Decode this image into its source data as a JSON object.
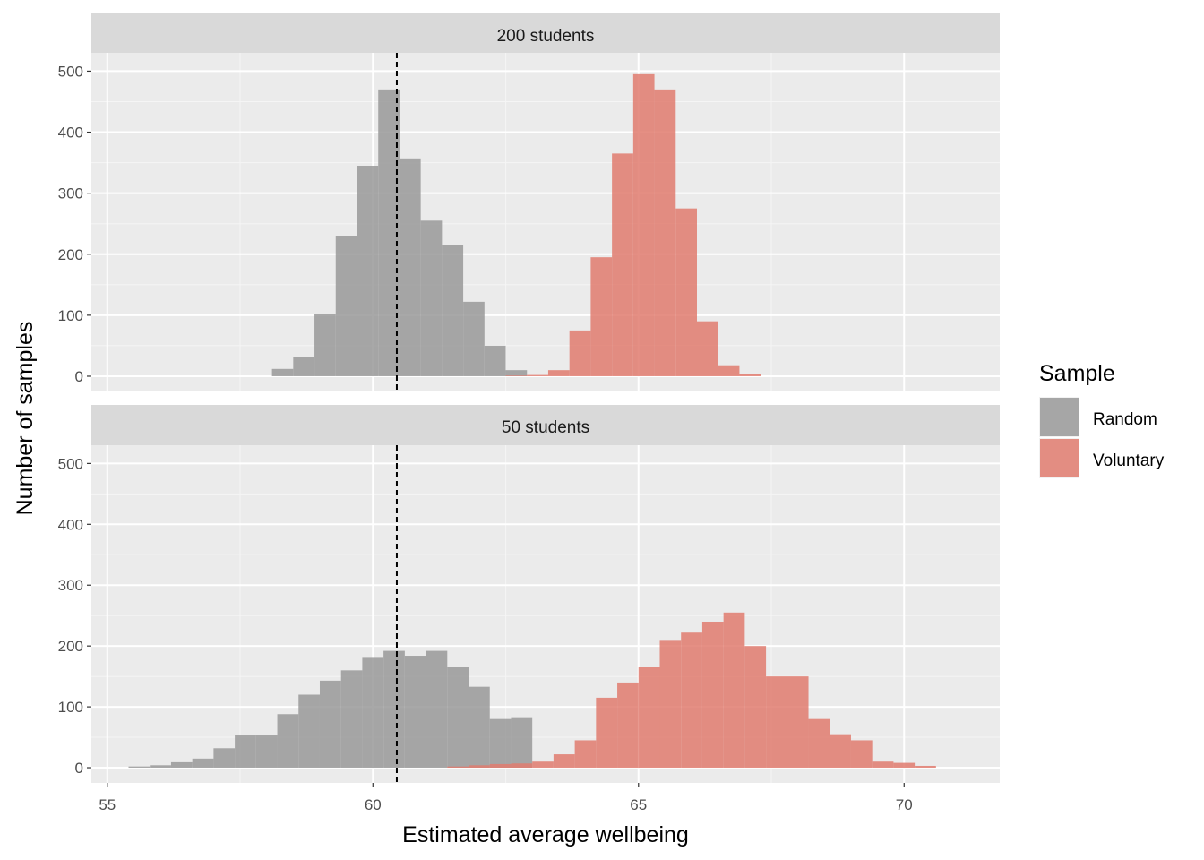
{
  "chart_data": {
    "type": "histogram",
    "xlabel": "Estimated average wellbeing",
    "ylabel": "Number of samples",
    "xlim": [
      54.7,
      71.8
    ],
    "ylim": [
      -25,
      530
    ],
    "x_ticks": [
      55,
      60,
      65,
      70
    ],
    "x_tick_labels": [
      "55",
      "60",
      "65",
      "70"
    ],
    "y_ticks": [
      0,
      100,
      200,
      300,
      400,
      500
    ],
    "y_tick_labels": [
      "0",
      "100",
      "200",
      "300",
      "400",
      "500"
    ],
    "grid": true,
    "reference_line": {
      "x": 60.45,
      "style": "dashed"
    },
    "legend": {
      "title": "Sample",
      "placement": "right",
      "entries": [
        {
          "label": "Random",
          "color": "#999999"
        },
        {
          "label": "Voluntary",
          "color": "#E07B6E"
        }
      ]
    },
    "bin_width": 0.4,
    "panels": [
      {
        "strip_label": "200 students",
        "series": [
          {
            "name": "Random",
            "color": "#999999",
            "bins_x0": [
              58.1,
              58.5,
              58.9,
              59.3,
              59.7,
              60.1,
              60.5,
              60.9,
              61.3,
              61.7,
              62.1,
              62.5
            ],
            "counts": [
              12,
              32,
              102,
              230,
              345,
              470,
              357,
              255,
              215,
              122,
              50,
              10
            ]
          },
          {
            "name": "Voluntary",
            "color": "#E07B6E",
            "bins_x0": [
              62.5,
              62.9,
              63.3,
              63.7,
              64.1,
              64.5,
              64.9,
              65.3,
              65.7,
              66.1,
              66.5,
              66.9
            ],
            "counts": [
              1,
              2,
              10,
              75,
              195,
              365,
              495,
              470,
              275,
              90,
              18,
              3
            ]
          }
        ]
      },
      {
        "strip_label": "50 students",
        "series": [
          {
            "name": "Random",
            "color": "#999999",
            "bins_x0": [
              55.4,
              55.8,
              56.2,
              56.6,
              57.0,
              57.4,
              57.8,
              58.2,
              58.6,
              59.0,
              59.4,
              59.8,
              60.2,
              60.6,
              61.0,
              61.4,
              61.8,
              62.2,
              62.6
            ],
            "counts": [
              2,
              4,
              9,
              15,
              32,
              53,
              53,
              88,
              120,
              143,
              160,
              182,
              192,
              184,
              192,
              165,
              133,
              80,
              83
            ]
          },
          {
            "name": "Voluntary",
            "color": "#E07B6E",
            "bins_x0": [
              61.4,
              61.8,
              62.2,
              62.6,
              63.0,
              63.4,
              63.8,
              64.2,
              64.6,
              65.0,
              65.4,
              65.8,
              66.2,
              66.6,
              67.0,
              67.4,
              67.8,
              68.2,
              68.6,
              69.0,
              69.4,
              69.8,
              70.2
            ],
            "counts": [
              2,
              4,
              6,
              7,
              10,
              22,
              45,
              115,
              140,
              165,
              210,
              222,
              240,
              255,
              200,
              150,
              150,
              80,
              55,
              45,
              10,
              8,
              3
            ]
          }
        ]
      }
    ]
  }
}
